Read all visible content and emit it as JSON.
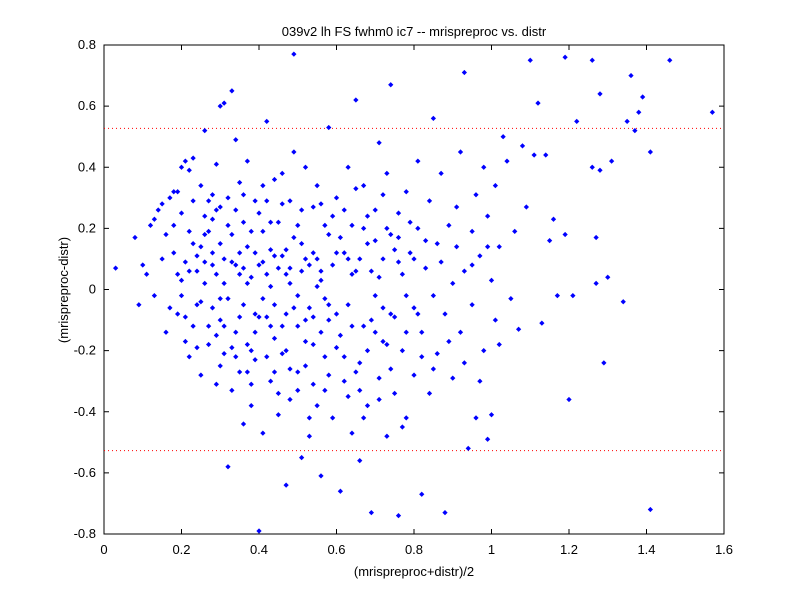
{
  "chart_data": {
    "type": "scatter",
    "title": "039v2 lh FS fwhm0 ic7 -- mrispreproc vs. distr",
    "xlabel": "(mrispreproc+distr)/2",
    "ylabel": "(mrispreproc-distr)",
    "xlim": [
      0,
      1.6
    ],
    "ylim": [
      -0.8,
      0.8
    ],
    "xticks": [
      "0",
      "0.2",
      "0.4",
      "0.6",
      "0.8",
      "1",
      "1.2",
      "1.4",
      "1.6"
    ],
    "yticks": [
      "0.8",
      "0.6",
      "0.4",
      "0.2",
      "0",
      "-0.2",
      "-0.4",
      "-0.6",
      "-0.8"
    ],
    "grid": false,
    "marker_color": "#0000ff",
    "reference_lines": [
      {
        "y": 0.527,
        "style": "dotted",
        "color": "#ff0000"
      },
      {
        "y": -0.527,
        "style": "dotted",
        "color": "#ff0000"
      }
    ],
    "points": [
      [
        0.03,
        0.07
      ],
      [
        0.08,
        0.17
      ],
      [
        0.09,
        -0.05
      ],
      [
        0.1,
        0.08
      ],
      [
        0.11,
        0.05
      ],
      [
        0.12,
        0.21
      ],
      [
        0.13,
        0.23
      ],
      [
        0.13,
        -0.02
      ],
      [
        0.14,
        0.26
      ],
      [
        0.15,
        0.28
      ],
      [
        0.16,
        0.18
      ],
      [
        0.16,
        -0.14
      ],
      [
        0.17,
        0.3
      ],
      [
        0.18,
        0.32
      ],
      [
        0.18,
        0.12
      ],
      [
        0.19,
        -0.08
      ],
      [
        0.19,
        0.32
      ],
      [
        0.2,
        0.25
      ],
      [
        0.2,
        0.03
      ],
      [
        0.21,
        -0.17
      ],
      [
        0.2,
        0.4
      ],
      [
        0.21,
        0.42
      ],
      [
        0.22,
        0.39
      ],
      [
        0.22,
        0.19
      ],
      [
        0.22,
        -0.22
      ],
      [
        0.23,
        0.29
      ],
      [
        0.23,
        0.43
      ],
      [
        0.24,
        0.11
      ],
      [
        0.24,
        -0.05
      ],
      [
        0.25,
        0.34
      ],
      [
        0.25,
        -0.28
      ],
      [
        0.26,
        0.24
      ],
      [
        0.26,
        0.52
      ],
      [
        0.27,
        0.29
      ],
      [
        0.27,
        -0.12
      ],
      [
        0.28,
        0.23
      ],
      [
        0.28,
        0.08
      ],
      [
        0.29,
        0.41
      ],
      [
        0.29,
        -0.31
      ],
      [
        0.3,
        0.6
      ],
      [
        0.3,
        0.27
      ],
      [
        0.3,
        -0.1
      ],
      [
        0.31,
        0.61
      ],
      [
        0.31,
        0.02
      ],
      [
        0.31,
        -0.21
      ],
      [
        0.32,
        0.3
      ],
      [
        0.32,
        -0.58
      ],
      [
        0.33,
        0.65
      ],
      [
        0.33,
        0.18
      ],
      [
        0.33,
        -0.33
      ],
      [
        0.34,
        0.49
      ],
      [
        0.34,
        0.08
      ],
      [
        0.34,
        -0.14
      ],
      [
        0.35,
        0.35
      ],
      [
        0.35,
        -0.27
      ],
      [
        0.36,
        0.22
      ],
      [
        0.36,
        -0.44
      ],
      [
        0.37,
        0.42
      ],
      [
        0.37,
        0.02
      ],
      [
        0.37,
        -0.18
      ],
      [
        0.38,
        0.19
      ],
      [
        0.38,
        -0.38
      ],
      [
        0.39,
        0.29
      ],
      [
        0.39,
        -0.08
      ],
      [
        0.4,
        0.08
      ],
      [
        0.4,
        -0.79
      ],
      [
        0.41,
        0.34
      ],
      [
        0.41,
        -0.47
      ],
      [
        0.42,
        0.55
      ],
      [
        0.42,
        -0.22
      ],
      [
        0.43,
        0.13
      ],
      [
        0.43,
        -0.3
      ],
      [
        0.44,
        0.36
      ],
      [
        0.44,
        -0.05
      ],
      [
        0.45,
        0.22
      ],
      [
        0.45,
        -0.41
      ],
      [
        0.46,
        0.38
      ],
      [
        0.46,
        -0.12
      ],
      [
        0.47,
        0.05
      ],
      [
        0.47,
        -0.64
      ],
      [
        0.48,
        0.29
      ],
      [
        0.48,
        -0.26
      ],
      [
        0.49,
        0.45
      ],
      [
        0.49,
        0.77
      ],
      [
        0.5,
        -0.02
      ],
      [
        0.5,
        -0.33
      ],
      [
        0.51,
        0.15
      ],
      [
        0.51,
        -0.55
      ],
      [
        0.52,
        0.4
      ],
      [
        0.52,
        -0.17
      ],
      [
        0.53,
        0.08
      ],
      [
        0.53,
        -0.48
      ],
      [
        0.54,
        0.27
      ],
      [
        0.54,
        -0.09
      ],
      [
        0.55,
        0.34
      ],
      [
        0.55,
        -0.38
      ],
      [
        0.56,
        0.03
      ],
      [
        0.56,
        -0.61
      ],
      [
        0.57,
        0.21
      ],
      [
        0.57,
        -0.22
      ],
      [
        0.58,
        0.53
      ],
      [
        0.58,
        -0.1
      ],
      [
        0.59,
        0.08
      ],
      [
        0.59,
        -0.42
      ],
      [
        0.6,
        0.3
      ],
      [
        0.6,
        -0.19
      ],
      [
        0.61,
        -0.66
      ],
      [
        0.62,
        0.12
      ],
      [
        0.62,
        -0.3
      ],
      [
        0.63,
        0.4
      ],
      [
        0.63,
        -0.05
      ],
      [
        0.64,
        0.21
      ],
      [
        0.64,
        -0.47
      ],
      [
        0.65,
        0.62
      ],
      [
        0.65,
        0.06
      ],
      [
        0.66,
        -0.24
      ],
      [
        0.66,
        -0.56
      ],
      [
        0.67,
        0.34
      ],
      [
        0.67,
        -0.12
      ],
      [
        0.68,
        0.15
      ],
      [
        0.68,
        -0.38
      ],
      [
        0.69,
        -0.73
      ],
      [
        0.7,
        0.26
      ],
      [
        0.7,
        -0.02
      ],
      [
        0.71,
        0.48
      ],
      [
        0.71,
        -0.29
      ],
      [
        0.72,
        0.1
      ],
      [
        0.72,
        -0.17
      ],
      [
        0.73,
        0.38
      ],
      [
        0.73,
        -0.48
      ],
      [
        0.74,
        0.18
      ],
      [
        0.74,
        0.67
      ],
      [
        0.75,
        -0.09
      ],
      [
        0.75,
        -0.34
      ],
      [
        0.76,
        0.25
      ],
      [
        0.76,
        -0.74
      ],
      [
        0.77,
        0.05
      ],
      [
        0.77,
        -0.2
      ],
      [
        0.78,
        0.32
      ],
      [
        0.78,
        -0.42
      ],
      [
        0.79,
        0.12
      ],
      [
        0.8,
        -0.06
      ],
      [
        0.8,
        -0.28
      ],
      [
        0.81,
        0.42
      ],
      [
        0.81,
        0.2
      ],
      [
        0.82,
        -0.14
      ],
      [
        0.82,
        -0.67
      ],
      [
        0.83,
        0.07
      ],
      [
        0.84,
        0.29
      ],
      [
        0.84,
        -0.34
      ],
      [
        0.85,
        0.56
      ],
      [
        0.85,
        -0.02
      ],
      [
        0.86,
        0.15
      ],
      [
        0.86,
        -0.21
      ],
      [
        0.87,
        0.38
      ],
      [
        0.88,
        -0.08
      ],
      [
        0.88,
        -0.73
      ],
      [
        0.89,
        0.21
      ],
      [
        0.9,
        0.02
      ],
      [
        0.9,
        -0.29
      ],
      [
        0.91,
        0.27
      ],
      [
        0.92,
        -0.14
      ],
      [
        0.92,
        0.45
      ],
      [
        0.93,
        0.71
      ],
      [
        0.93,
        0.06
      ],
      [
        0.94,
        -0.52
      ],
      [
        0.95,
        0.19
      ],
      [
        0.95,
        -0.05
      ],
      [
        0.96,
        0.31
      ],
      [
        0.96,
        -0.42
      ],
      [
        0.97,
        0.11
      ],
      [
        0.98,
        -0.2
      ],
      [
        0.98,
        0.4
      ],
      [
        0.99,
        0.24
      ],
      [
        0.99,
        -0.49
      ],
      [
        1.0,
        0.03
      ],
      [
        1.0,
        -0.41
      ],
      [
        1.01,
        0.34
      ],
      [
        1.02,
        0.14
      ],
      [
        1.02,
        -0.18
      ],
      [
        1.03,
        0.5
      ],
      [
        1.04,
        0.42
      ],
      [
        1.05,
        -0.03
      ],
      [
        1.06,
        0.19
      ],
      [
        1.07,
        -0.13
      ],
      [
        1.08,
        0.47
      ],
      [
        1.09,
        0.27
      ],
      [
        1.1,
        0.75
      ],
      [
        1.11,
        0.44
      ],
      [
        1.12,
        0.61
      ],
      [
        1.13,
        -0.11
      ],
      [
        1.14,
        0.44
      ],
      [
        1.15,
        0.16
      ],
      [
        1.16,
        0.23
      ],
      [
        1.17,
        -0.02
      ],
      [
        1.19,
        0.18
      ],
      [
        1.19,
        0.76
      ],
      [
        1.2,
        -0.36
      ],
      [
        1.21,
        -0.02
      ],
      [
        1.22,
        0.55
      ],
      [
        1.26,
        0.4
      ],
      [
        1.26,
        0.75
      ],
      [
        1.27,
        0.17
      ],
      [
        1.27,
        0.02
      ],
      [
        1.28,
        0.39
      ],
      [
        1.28,
        0.64
      ],
      [
        1.29,
        -0.24
      ],
      [
        1.3,
        0.04
      ],
      [
        1.31,
        0.42
      ],
      [
        1.34,
        -0.04
      ],
      [
        1.35,
        0.55
      ],
      [
        1.36,
        0.7
      ],
      [
        1.37,
        0.52
      ],
      [
        1.38,
        0.58
      ],
      [
        1.39,
        0.63
      ],
      [
        1.41,
        0.45
      ],
      [
        1.41,
        -0.72
      ],
      [
        1.46,
        0.75
      ],
      [
        1.57,
        0.58
      ],
      [
        0.29,
        0.26
      ],
      [
        0.24,
        0.06
      ],
      [
        0.26,
        0.09
      ],
      [
        0.28,
        -0.06
      ],
      [
        0.3,
        0.15
      ],
      [
        0.32,
        -0.03
      ],
      [
        0.35,
        0.12
      ],
      [
        0.36,
        -0.05
      ],
      [
        0.38,
        0.04
      ],
      [
        0.39,
        -0.14
      ],
      [
        0.41,
        0.09
      ],
      [
        0.42,
        -0.09
      ],
      [
        0.43,
        0.01
      ],
      [
        0.44,
        -0.16
      ],
      [
        0.46,
        0.11
      ],
      [
        0.47,
        -0.08
      ],
      [
        0.48,
        0.02
      ],
      [
        0.5,
        -0.12
      ],
      [
        0.51,
        0.06
      ],
      [
        0.53,
        -0.06
      ],
      [
        0.55,
        0.1
      ],
      [
        0.57,
        -0.03
      ],
      [
        0.21,
        0.09
      ],
      [
        0.23,
        -0.12
      ],
      [
        0.25,
        0.14
      ],
      [
        0.27,
        -0.18
      ],
      [
        0.29,
        0.05
      ],
      [
        0.31,
        -0.12
      ],
      [
        0.33,
        0.09
      ],
      [
        0.35,
        -0.09
      ],
      [
        0.37,
        0.14
      ],
      [
        0.39,
        -0.23
      ],
      [
        0.41,
        0.19
      ],
      [
        0.43,
        -0.12
      ],
      [
        0.45,
        0.07
      ],
      [
        0.47,
        -0.2
      ],
      [
        0.49,
        0.17
      ],
      [
        0.52,
        -0.25
      ],
      [
        0.54,
        0.12
      ],
      [
        0.56,
        -0.14
      ],
      [
        0.58,
        0.18
      ],
      [
        0.6,
        -0.08
      ],
      [
        0.62,
        0.26
      ],
      [
        0.64,
        -0.12
      ],
      [
        0.66,
        0.1
      ],
      [
        0.68,
        -0.2
      ],
      [
        0.7,
        0.16
      ],
      [
        0.72,
        -0.06
      ],
      [
        0.74,
        -0.26
      ],
      [
        0.76,
        0.09
      ],
      [
        0.78,
        -0.14
      ],
      [
        0.18,
        0.21
      ],
      [
        0.2,
        -0.02
      ],
      [
        0.22,
        0.06
      ],
      [
        0.24,
        -0.19
      ],
      [
        0.26,
        0.18
      ],
      [
        0.28,
        0.31
      ],
      [
        0.3,
        -0.25
      ],
      [
        0.32,
        0.21
      ],
      [
        0.34,
        -0.22
      ],
      [
        0.36,
        0.31
      ],
      [
        0.38,
        -0.31
      ],
      [
        0.4,
        0.25
      ],
      [
        0.42,
        0.05
      ],
      [
        0.44,
        -0.27
      ],
      [
        0.46,
        0.28
      ],
      [
        0.48,
        -0.36
      ],
      [
        0.5,
        0.21
      ],
      [
        0.52,
        -0.1
      ],
      [
        0.54,
        -0.31
      ],
      [
        0.56,
        0.28
      ],
      [
        0.58,
        -0.28
      ],
      [
        0.61,
        0.17
      ],
      [
        0.63,
        -0.35
      ],
      [
        0.65,
        0.33
      ],
      [
        0.67,
        -0.42
      ],
      [
        0.69,
        0.06
      ],
      [
        0.71,
        -0.36
      ],
      [
        0.73,
        0.2
      ],
      [
        0.75,
        0.13
      ],
      [
        0.77,
        -0.45
      ],
      [
        0.15,
        0.1
      ],
      [
        0.17,
        -0.06
      ],
      [
        0.19,
        0.05
      ],
      [
        0.21,
        -0.09
      ],
      [
        0.23,
        0.15
      ],
      [
        0.25,
        -0.04
      ],
      [
        0.27,
        0.19
      ],
      [
        0.29,
        -0.15
      ],
      [
        0.31,
        0.1
      ],
      [
        0.33,
        -0.19
      ],
      [
        0.35,
        0.05
      ],
      [
        0.37,
        -0.27
      ],
      [
        0.39,
        0.12
      ],
      [
        0.41,
        -0.03
      ],
      [
        0.43,
        0.22
      ],
      [
        0.45,
        -0.34
      ],
      [
        0.47,
        0.13
      ],
      [
        0.49,
        -0.06
      ],
      [
        0.51,
        0.26
      ],
      [
        0.53,
        -0.42
      ],
      [
        0.55,
        0.01
      ],
      [
        0.57,
        -0.33
      ],
      [
        0.59,
        0.24
      ],
      [
        0.61,
        -0.15
      ],
      [
        0.63,
        0.1
      ],
      [
        0.65,
        -0.27
      ],
      [
        0.67,
        0.2
      ],
      [
        0.69,
        -0.1
      ],
      [
        0.71,
        0.04
      ],
      [
        0.73,
        -0.18
      ],
      [
        0.79,
        0.22
      ],
      [
        0.81,
        -0.08
      ],
      [
        0.83,
        0.16
      ],
      [
        0.85,
        -0.26
      ],
      [
        0.87,
        0.09
      ],
      [
        0.89,
        -0.17
      ],
      [
        0.91,
        0.14
      ],
      [
        0.93,
        -0.24
      ],
      [
        0.95,
        0.08
      ],
      [
        0.97,
        -0.3
      ],
      [
        0.99,
        0.14
      ],
      [
        1.01,
        -0.1
      ],
      [
        0.26,
        0.02
      ],
      [
        0.28,
        0.12
      ],
      [
        0.3,
        -0.03
      ],
      [
        0.34,
        0.26
      ],
      [
        0.36,
        0.07
      ],
      [
        0.38,
        -0.2
      ],
      [
        0.4,
        -0.09
      ],
      [
        0.42,
        0.29
      ],
      [
        0.44,
        0.11
      ],
      [
        0.46,
        -0.21
      ],
      [
        0.48,
        0.07
      ],
      [
        0.5,
        -0.27
      ],
      [
        0.52,
        0.1
      ],
      [
        0.54,
        -0.18
      ],
      [
        0.56,
        0.06
      ],
      [
        0.58,
        -0.05
      ],
      [
        0.6,
        0.12
      ],
      [
        0.62,
        -0.22
      ],
      [
        0.64,
        0.05
      ],
      [
        0.66,
        -0.33
      ],
      [
        0.68,
        0.24
      ],
      [
        0.7,
        -0.14
      ],
      [
        0.72,
        0.31
      ],
      [
        0.74,
        -0.08
      ],
      [
        0.76,
        0.17
      ],
      [
        0.78,
        -0.02
      ],
      [
        0.8,
        0.1
      ],
      [
        0.82,
        -0.22
      ]
    ]
  }
}
